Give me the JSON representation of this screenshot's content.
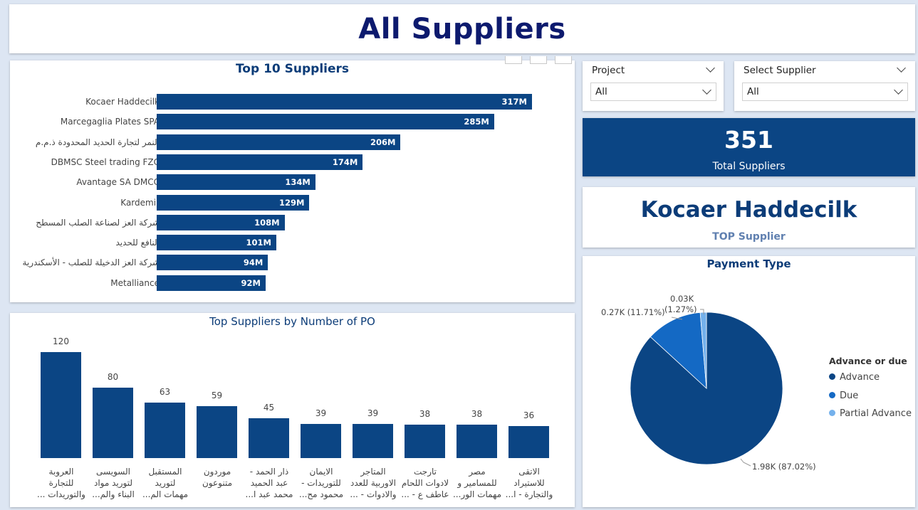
{
  "page_title": "All Suppliers",
  "colors": {
    "bar": "#0b4584",
    "title": "#0c3c78",
    "advance": "#0b4584",
    "due": "#1469c4",
    "partial_advance": "#74b1ec"
  },
  "top10": {
    "title": "Top 10 Suppliers",
    "chart_data": {
      "type": "bar",
      "orientation": "horizontal",
      "title": "Top 10 Suppliers",
      "categories": [
        "Kocaer Haddecilk",
        "Marcegaglia Plates SPA",
        "النمر لتجارة الحديد المحدودة ذ.م.م",
        "DBMSC Steel trading FZC",
        "Avantage SA DMCC",
        "Kardemir",
        "شركة العز لصناعة الصلب المسطح",
        "النافع للحديد",
        "شركة العز الدخيلة للصلب - الأسكندرية",
        "Metalliance"
      ],
      "values": [
        317,
        285,
        206,
        174,
        134,
        129,
        108,
        101,
        94,
        92
      ],
      "value_labels": [
        "317M",
        "285M",
        "206M",
        "174M",
        "134M",
        "129M",
        "108M",
        "101M",
        "94M",
        "92M"
      ],
      "unit": "M"
    }
  },
  "po": {
    "title": "Top Suppliers by Number of PO",
    "chart_data": {
      "type": "bar",
      "title": "Top Suppliers by Number of PO",
      "categories": [
        [
          "العروبة",
          "للتجارة",
          "والتوريدات ..."
        ],
        [
          "السويسى",
          "لتوريد مواد",
          "البناء والم..."
        ],
        [
          "المستقبل",
          "لتوريد",
          "مهمات الم..."
        ],
        [
          "موردون",
          "متنوعون"
        ],
        [
          "ذار الحمد -",
          "عبد الحميد",
          "محمد عبد ا..."
        ],
        [
          "الايمان",
          "للتوريدات -",
          "محمود مح..."
        ],
        [
          "المتاجر",
          "الاوربية للعدد",
          "والادوات - ..."
        ],
        [
          "تارجت",
          "لادوات اللحام",
          "عاطف ع - ..."
        ],
        [
          "مصر",
          "للمسامير و",
          "مهمات الور..."
        ],
        [
          "الاتقى",
          "للاستيراد",
          "والتجارة - ا..."
        ]
      ],
      "values": [
        120,
        80,
        63,
        59,
        45,
        39,
        39,
        38,
        38,
        36
      ]
    }
  },
  "slicers": {
    "project": {
      "label": "Project",
      "value": "All"
    },
    "supplier": {
      "label": "Select Supplier",
      "value": "All"
    }
  },
  "kpi": {
    "value": "351",
    "label": "Total Suppliers"
  },
  "top_supplier": {
    "name": "Kocaer Haddecilk",
    "label": "TOP Supplier"
  },
  "payment": {
    "title": "Payment Type",
    "legend_title": "Advance or due",
    "chart_data": {
      "type": "pie",
      "title": "Payment Type",
      "legend_title": "Advance or due",
      "categories": [
        "Advance",
        "Due",
        "Partial Advance"
      ],
      "values": [
        1980,
        270,
        30
      ],
      "percents": [
        87.02,
        11.71,
        1.27
      ],
      "labels": [
        "1.98K (87.02%)",
        "0.27K (11.71%)",
        "0.03K (1.27%)"
      ]
    },
    "lbl_due": "0.27K (11.71%)",
    "lbl_partial_value": "0.03K",
    "lbl_partial_pct": "(1.27%)",
    "lbl_advance": "1.98K (87.02%)"
  }
}
